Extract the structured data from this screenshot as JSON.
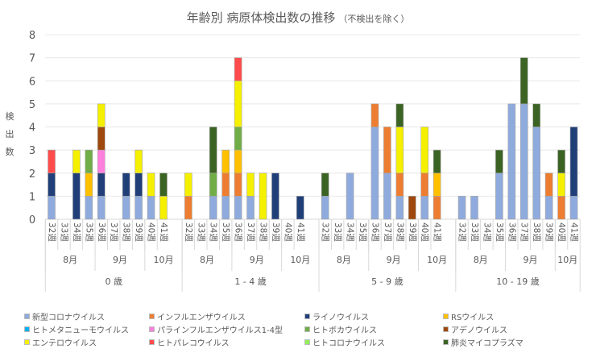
{
  "chart_data": {
    "type": "bar",
    "stacked": true,
    "title": "年齢別 病原体検出数の推移",
    "subtitle": "（不検出を除く）",
    "ylabel": "検出数",
    "ylabel_chars": [
      "検",
      "出",
      "数"
    ],
    "ylim": [
      0,
      8
    ],
    "yticks": [
      0,
      1,
      2,
      3,
      4,
      5,
      6,
      7,
      8
    ],
    "grid": true,
    "legend_position": "bottom",
    "age_groups": [
      "0 歳",
      "1 - 4 歳",
      "5 - 9 歳",
      "10 - 19 歳"
    ],
    "months": [
      {
        "label": "8月",
        "weeks": [
          "32週",
          "33週",
          "34週",
          "35週"
        ]
      },
      {
        "label": "9月",
        "weeks": [
          "36週",
          "37週",
          "38週",
          "39週"
        ]
      },
      {
        "label": "10月",
        "weeks": [
          "40週",
          "41週"
        ]
      }
    ],
    "series": [
      {
        "name": "新型コロナウイルス",
        "color": "#8faadc",
        "values": [
          1,
          0,
          0,
          1,
          1,
          0,
          1,
          1,
          1,
          0,
          0,
          0,
          1,
          1,
          1,
          1,
          0,
          0,
          0,
          0,
          1,
          0,
          2,
          0,
          4,
          2,
          1,
          0,
          1,
          0,
          1,
          1,
          0,
          2,
          5,
          5,
          4,
          1,
          0,
          1
        ]
      },
      {
        "name": "インフルエンザウイルス",
        "color": "#ed7d31",
        "values": [
          0,
          0,
          0,
          0,
          0,
          0,
          0,
          0,
          0,
          0,
          1,
          0,
          0,
          1,
          1,
          0,
          0,
          0,
          0,
          0,
          0,
          0,
          0,
          0,
          1,
          2,
          1,
          0,
          1,
          1,
          0,
          0,
          0,
          0,
          0,
          0,
          0,
          1,
          1,
          0
        ]
      },
      {
        "name": "ライノウイルス",
        "color": "#203f78",
        "values": [
          1,
          0,
          2,
          0,
          1,
          0,
          1,
          1,
          0,
          0,
          0,
          0,
          0,
          0,
          0,
          0,
          0,
          2,
          0,
          1,
          0,
          0,
          0,
          0,
          0,
          0,
          0,
          0,
          0,
          0,
          0,
          0,
          0,
          0,
          0,
          0,
          0,
          0,
          0,
          3
        ]
      },
      {
        "name": "RSウイルス",
        "color": "#ffc000",
        "values": [
          0,
          0,
          0,
          1,
          0,
          0,
          0,
          0,
          0,
          0,
          0,
          0,
          0,
          1,
          1,
          0,
          0,
          0,
          0,
          0,
          0,
          0,
          0,
          0,
          0,
          0,
          0,
          0,
          0,
          1,
          0,
          0,
          0,
          0,
          0,
          0,
          0,
          0,
          0,
          0
        ]
      },
      {
        "name": "ヒトメタニューモウイルス",
        "color": "#00b0f0",
        "values": [
          0,
          0,
          0,
          0,
          0,
          0,
          0,
          0,
          0,
          0,
          0,
          0,
          0,
          0,
          0,
          0,
          0,
          0,
          0,
          0,
          0,
          0,
          0,
          0,
          0,
          0,
          0,
          0,
          0,
          0,
          0,
          0,
          0,
          0,
          0,
          0,
          0,
          0,
          0,
          0
        ]
      },
      {
        "name": "パラインフルエンザウイルス1-4型",
        "color": "#ff80dc",
        "values": [
          0,
          0,
          0,
          0,
          1,
          0,
          0,
          0,
          0,
          0,
          0,
          0,
          0,
          0,
          0,
          0,
          0,
          0,
          0,
          0,
          0,
          0,
          0,
          0,
          0,
          0,
          0,
          0,
          0,
          0,
          0,
          0,
          0,
          0,
          0,
          0,
          0,
          0,
          0,
          0
        ]
      },
      {
        "name": "ヒトボカウイルス",
        "color": "#70ad47",
        "values": [
          0,
          0,
          0,
          1,
          0,
          0,
          0,
          0,
          0,
          0,
          0,
          0,
          1,
          0,
          1,
          0,
          0,
          0,
          0,
          0,
          0,
          0,
          0,
          0,
          0,
          0,
          0,
          0,
          0,
          0,
          0,
          0,
          0,
          0,
          0,
          0,
          0,
          0,
          0,
          0
        ]
      },
      {
        "name": "アデノウイルス",
        "color": "#9e480e",
        "values": [
          0,
          0,
          0,
          0,
          1,
          0,
          0,
          0,
          0,
          0,
          0,
          0,
          0,
          0,
          0,
          0,
          0,
          0,
          0,
          0,
          0,
          0,
          0,
          0,
          0,
          0,
          0,
          1,
          0,
          0,
          0,
          0,
          0,
          0,
          0,
          0,
          0,
          0,
          0,
          0
        ]
      },
      {
        "name": "エンテロウイルス",
        "color": "#f5f000",
        "values": [
          0,
          0,
          1,
          0,
          1,
          0,
          0,
          1,
          1,
          1,
          1,
          0,
          0,
          0,
          2,
          1,
          2,
          0,
          0,
          0,
          0,
          0,
          0,
          0,
          0,
          0,
          2,
          0,
          2,
          0,
          0,
          0,
          0,
          0,
          0,
          0,
          0,
          0,
          1,
          0
        ]
      },
      {
        "name": "ヒトパレコウイルス",
        "color": "#ff4b4b",
        "values": [
          1,
          0,
          0,
          0,
          0,
          0,
          0,
          0,
          0,
          0,
          0,
          0,
          0,
          0,
          1,
          0,
          0,
          0,
          0,
          0,
          0,
          0,
          0,
          0,
          0,
          0,
          0,
          0,
          0,
          0,
          0,
          0,
          0,
          0,
          0,
          0,
          0,
          0,
          0,
          0
        ]
      },
      {
        "name": "ヒトコロナウイルス",
        "color": "#92f05a",
        "values": [
          0,
          0,
          0,
          0,
          0,
          0,
          0,
          0,
          0,
          0,
          0,
          0,
          0,
          0,
          0,
          0,
          0,
          0,
          0,
          0,
          0,
          0,
          0,
          0,
          0,
          0,
          0,
          0,
          0,
          0,
          0,
          0,
          0,
          0,
          0,
          0,
          0,
          0,
          0,
          0
        ]
      },
      {
        "name": "肺炎マイコプラズマ",
        "color": "#3b6324",
        "values": [
          0,
          0,
          0,
          0,
          0,
          0,
          0,
          0,
          0,
          1,
          0,
          0,
          2,
          0,
          0,
          0,
          0,
          0,
          0,
          0,
          1,
          0,
          0,
          0,
          0,
          0,
          1,
          0,
          0,
          1,
          0,
          0,
          0,
          1,
          0,
          2,
          1,
          0,
          1,
          0
        ]
      }
    ]
  }
}
